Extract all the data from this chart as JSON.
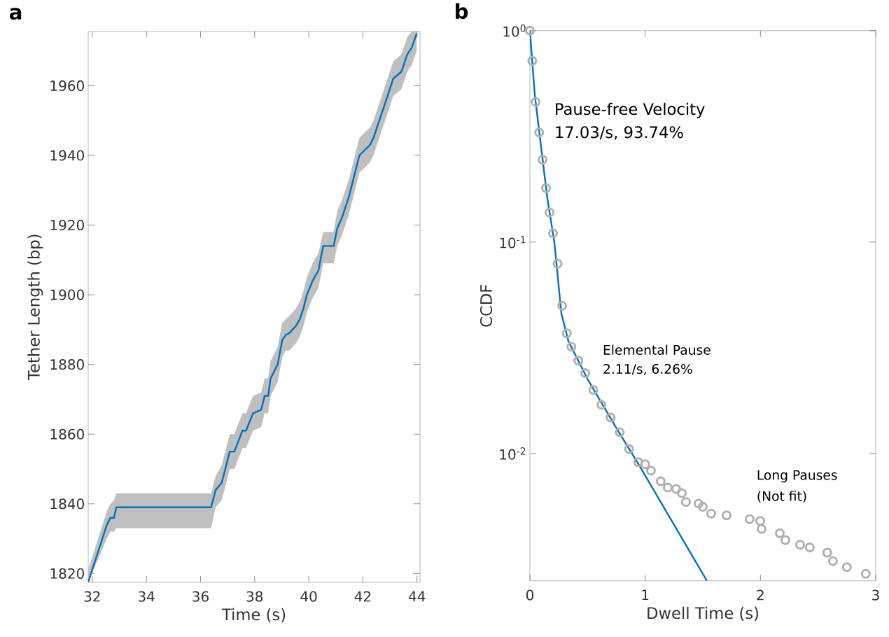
{
  "chart_data": [
    {
      "type": "line",
      "title": "a",
      "xlabel": "Time (s)",
      "ylabel": "Tether Length (bp)",
      "xlim": [
        31.85,
        44.11
      ],
      "ylim": [
        1817.5,
        1975.6
      ],
      "xticks": [
        32,
        34,
        36,
        38,
        40,
        42,
        44
      ],
      "yticks": [
        1820,
        1840,
        1860,
        1880,
        1900,
        1920,
        1940,
        1960
      ],
      "series": [
        {
          "color": "#0072bd",
          "x": [
            31.85,
            32.54,
            32.67,
            32.8,
            32.89,
            36.39,
            36.56,
            36.78,
            36.95,
            37.08,
            37.25,
            37.55,
            37.68,
            37.94,
            38.24,
            38.37,
            38.5,
            38.59,
            38.85,
            39.02,
            39.15,
            39.28,
            39.52,
            39.67,
            39.8,
            39.93,
            40.14,
            40.36,
            40.53,
            40.92,
            41.05,
            41.22,
            41.48,
            41.61,
            41.87,
            42.0,
            42.26,
            42.39,
            42.52,
            42.65,
            42.91,
            43.12,
            43.42,
            43.64,
            43.81,
            43.99
          ],
          "values": [
            1817.5,
            1834,
            1836,
            1836,
            1839,
            1839,
            1844,
            1846,
            1851,
            1855,
            1855,
            1861,
            1861,
            1866,
            1867,
            1871,
            1871,
            1876,
            1880,
            1887,
            1888.5,
            1889,
            1891,
            1893,
            1896,
            1900,
            1904,
            1907,
            1914,
            1914,
            1919,
            1922,
            1928,
            1932,
            1940,
            1941,
            1943,
            1945,
            1948,
            1951,
            1957,
            1962,
            1964,
            1969,
            1971,
            1975
          ],
          "lower": [
            1817.5,
            1830,
            1832,
            1832,
            1833,
            1833,
            1839,
            1841,
            1846,
            1850,
            1850,
            1856,
            1856,
            1861,
            1862,
            1866,
            1866,
            1871,
            1875,
            1882,
            1884,
            1884,
            1886,
            1888,
            1891,
            1895,
            1899,
            1902,
            1909,
            1909,
            1914,
            1917,
            1923,
            1927,
            1935,
            1936,
            1938,
            1940,
            1943,
            1946,
            1952,
            1957,
            1959,
            1964,
            1966,
            1970
          ],
          "upper": [
            1821,
            1838,
            1840,
            1841,
            1843,
            1843,
            1848,
            1851,
            1856,
            1860,
            1860,
            1866,
            1866,
            1871,
            1872,
            1876,
            1876,
            1881,
            1885,
            1892,
            1893,
            1894,
            1896,
            1898,
            1901,
            1905,
            1909,
            1912,
            1918,
            1918,
            1924,
            1927,
            1933,
            1937,
            1945,
            1946,
            1948,
            1950,
            1953,
            1956,
            1962,
            1967,
            1969,
            1974,
            1975.6,
            1975.6
          ]
        }
      ]
    },
    {
      "type": "scatter",
      "title": "b",
      "xlabel": "Dwell Time (s)",
      "ylabel": "CCDF",
      "log": "y",
      "xlim": [
        0,
        3
      ],
      "ylim": [
        0.0025,
        1
      ],
      "xticks": [
        0,
        1,
        2,
        3
      ],
      "yticks": [
        {
          "value": 1,
          "label": "10$^{0}$"
        },
        {
          "value": 0.1,
          "label": "10$^{-1}$"
        },
        {
          "value": 0.01,
          "label": "10$^{-2}$"
        }
      ],
      "annotations": [
        "Pause-free Velocity",
        "17.03/s, 93.74%",
        "Elemental Pause",
        "2.11/s, 6.26%",
        "Long Pauses",
        "(Not fit)"
      ],
      "series": [
        {
          "type": "scatter",
          "color": "#b0b0b0",
          "marker": "circle",
          "x": [
            0,
            0.02,
            0.05,
            0.08,
            0.11,
            0.14,
            0.17,
            0.2,
            0.24,
            0.28,
            0.32,
            0.36,
            0.42,
            0.48,
            0.55,
            0.62,
            0.7,
            0.78,
            0.86,
            0.94,
            1.0,
            1.05,
            1.135,
            1.196,
            1.269,
            1.318,
            1.354,
            1.463,
            1.5,
            1.573,
            1.706,
            1.907,
            1.998,
            2.01,
            2.168,
            2.216,
            2.344,
            2.428,
            2.58,
            2.629,
            2.75,
            2.914
          ],
          "values": [
            1.0,
            0.72,
            0.46,
            0.33,
            0.245,
            0.18,
            0.138,
            0.11,
            0.079,
            0.05,
            0.037,
            0.032,
            0.0275,
            0.024,
            0.02,
            0.017,
            0.0148,
            0.0126,
            0.0105,
            0.0091,
            0.0089,
            0.0083,
            0.0074,
            0.0069,
            0.0068,
            0.0065,
            0.0059,
            0.0058,
            0.0056,
            0.0052,
            0.0051,
            0.0049,
            0.0048,
            0.0044,
            0.0042,
            0.0039,
            0.0037,
            0.0036,
            0.0034,
            0.0031,
            0.0029,
            0.0027
          ]
        },
        {
          "type": "line",
          "color": "#0072bd",
          "x": [
            0,
            0.042,
            0.091,
            0.152,
            0.212,
            0.273,
            0.334,
            0.504,
            0.747,
            0.953,
            1.536
          ],
          "values": [
            1.0,
            0.5,
            0.3,
            0.16,
            0.1,
            0.046,
            0.034,
            0.0223,
            0.0133,
            0.0087,
            0.0025
          ]
        }
      ]
    }
  ]
}
